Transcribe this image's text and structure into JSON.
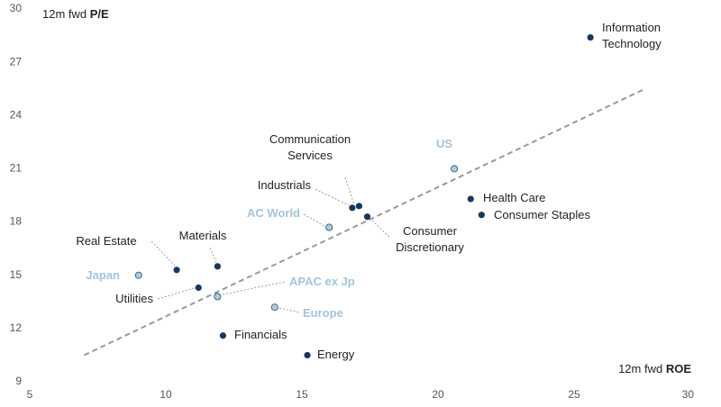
{
  "chart_data": {
    "type": "scatter",
    "ylabel": {
      "prefix": "12m fwd",
      "bold": "P/E"
    },
    "xlabel": {
      "prefix": "12m fwd",
      "bold": "ROE"
    },
    "xlim": [
      5,
      30
    ],
    "xticks": [
      5,
      10,
      15,
      20,
      25,
      30
    ],
    "ylim": [
      9,
      30
    ],
    "yticks": [
      9,
      12,
      15,
      18,
      21,
      24,
      27,
      30
    ],
    "series": [
      {
        "color": "#17375e",
        "label_color": "#222222",
        "labels": [
          [
            "Information",
            "Technology"
          ],
          [
            "Health Care"
          ],
          [
            "Consumer Staples"
          ],
          [
            "Communication",
            "Services"
          ],
          [
            "Industrials"
          ],
          [
            "Consumer",
            "Discretionary"
          ],
          [
            "Materials"
          ],
          [
            "Real Estate"
          ],
          [
            "Utilities"
          ],
          [
            "Financials"
          ],
          [
            "Energy"
          ]
        ],
        "x": [
          25.6,
          21.2,
          21.6,
          17.1,
          16.85,
          17.4,
          11.9,
          10.4,
          11.2,
          12.1,
          15.2
        ],
        "y": [
          28.4,
          19.3,
          18.4,
          18.9,
          18.8,
          18.3,
          15.5,
          15.3,
          14.3,
          11.6,
          10.5
        ]
      },
      {
        "color": "#a9cce3",
        "label_color": "#a3c4de",
        "labels": [
          [
            "US"
          ],
          [
            "AC World"
          ],
          [
            "Japan"
          ],
          [
            "APAC ex Jp"
          ],
          [
            "Europe"
          ]
        ],
        "x": [
          20.6,
          16.0,
          9.0,
          11.9,
          14.0
        ],
        "y": [
          21.0,
          17.7,
          15.0,
          13.8,
          13.2
        ]
      }
    ],
    "trendline": {
      "color": "#999999",
      "x": [
        7.0,
        27.6
      ],
      "y": [
        10.5,
        25.5
      ]
    }
  }
}
